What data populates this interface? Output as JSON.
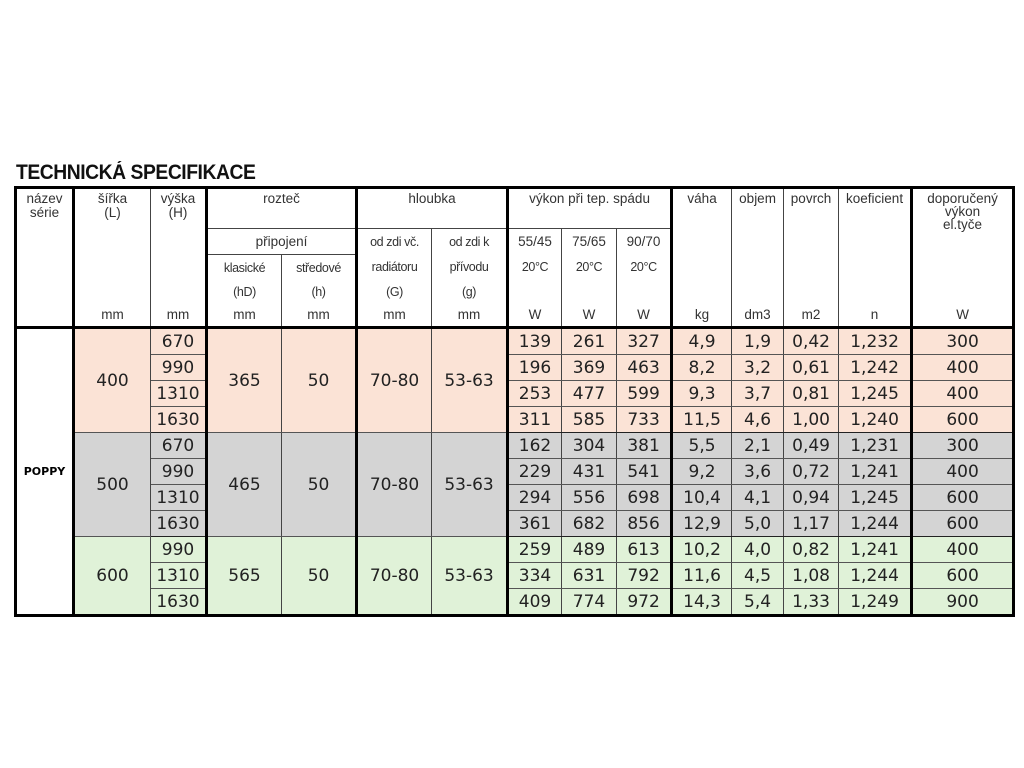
{
  "title": "TECHNICKÁ SPECIFIKACE",
  "header": {
    "series": [
      "název",
      "série"
    ],
    "width": [
      "šířka",
      "(L)"
    ],
    "height": [
      "výška",
      "(H)"
    ],
    "spacing": "rozteč",
    "connection": "připojení",
    "classic": "klasické",
    "classic_sym": "(hD)",
    "center": "středové",
    "center_sym": "(h)",
    "depth": "hloubka",
    "depth_wall": [
      "od zdi  vč.",
      "radiátoru",
      "(G)"
    ],
    "depth_supply": [
      "od zdi  k",
      "přívodu",
      "(g)"
    ],
    "output": "výkon při tep.  spádu",
    "gradients": [
      "55/45",
      "75/65",
      "90/70"
    ],
    "room_temp": "20°C",
    "weight": "váha",
    "volume": "objem",
    "surface": "povrch",
    "coefficient": "koeficient",
    "recommended": [
      "doporučený",
      "výkon",
      "el.tyče"
    ],
    "units": [
      "",
      "mm",
      "mm",
      "mm",
      "mm",
      "mm",
      "mm",
      "W",
      "W",
      "W",
      "kg",
      "dm3",
      "m2",
      "n",
      "W"
    ]
  },
  "series_name": "POPPY",
  "colors": {
    "pink": "#fbe3d6",
    "gray": "#d4d4d4",
    "green": "#e0f2d8"
  },
  "groups": [
    {
      "color": "pink",
      "width": "400",
      "hD": "365",
      "h": "50",
      "G": "70-80",
      "g": "53-63",
      "rows": [
        [
          "670",
          "139",
          "261",
          "327",
          "4,9",
          "1,9",
          "0,42",
          "1,232",
          "300"
        ],
        [
          "990",
          "196",
          "369",
          "463",
          "8,2",
          "3,2",
          "0,61",
          "1,242",
          "400"
        ],
        [
          "1310",
          "253",
          "477",
          "599",
          "9,3",
          "3,7",
          "0,81",
          "1,245",
          "400"
        ],
        [
          "1630",
          "311",
          "585",
          "733",
          "11,5",
          "4,6",
          "1,00",
          "1,240",
          "600"
        ]
      ]
    },
    {
      "color": "gray",
      "width": "500",
      "hD": "465",
      "h": "50",
      "G": "70-80",
      "g": "53-63",
      "rows": [
        [
          "670",
          "162",
          "304",
          "381",
          "5,5",
          "2,1",
          "0,49",
          "1,231",
          "300"
        ],
        [
          "990",
          "229",
          "431",
          "541",
          "9,2",
          "3,6",
          "0,72",
          "1,241",
          "400"
        ],
        [
          "1310",
          "294",
          "556",
          "698",
          "10,4",
          "4,1",
          "0,94",
          "1,245",
          "600"
        ],
        [
          "1630",
          "361",
          "682",
          "856",
          "12,9",
          "5,0",
          "1,17",
          "1,244",
          "600"
        ]
      ]
    },
    {
      "color": "green",
      "width": "600",
      "hD": "565",
      "h": "50",
      "G": "70-80",
      "g": "53-63",
      "rows": [
        [
          "990",
          "259",
          "489",
          "613",
          "10,2",
          "4,0",
          "0,82",
          "1,241",
          "400"
        ],
        [
          "1310",
          "334",
          "631",
          "792",
          "11,6",
          "4,5",
          "1,08",
          "1,244",
          "600"
        ],
        [
          "1630",
          "409",
          "774",
          "972",
          "14,3",
          "5,4",
          "1,33",
          "1,249",
          "900"
        ]
      ]
    }
  ]
}
